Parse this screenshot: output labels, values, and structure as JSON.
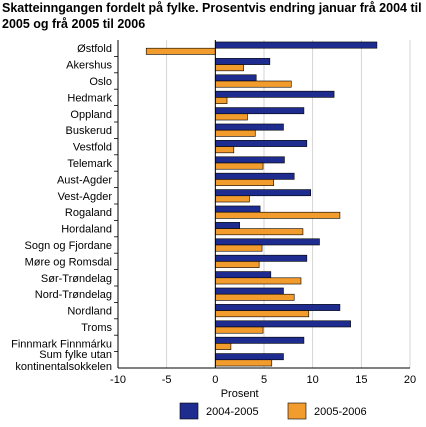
{
  "chart_data": {
    "type": "bar",
    "orientation": "horizontal",
    "title": "Skatteinngangen fordelt på fylke. Prosentvis endring januar frå 2004 til 2005 og frå 2005 til 2006",
    "xlabel": "Prosent",
    "xlim": [
      -10,
      20
    ],
    "xticks": [
      -10,
      -5,
      0,
      5,
      10,
      15,
      20
    ],
    "grid": "vertical",
    "legend_position": "bottom",
    "categories": [
      [
        "Østfold"
      ],
      [
        "Akershus"
      ],
      [
        "Oslo"
      ],
      [
        "Hedmark"
      ],
      [
        "Oppland"
      ],
      [
        "Buskerud"
      ],
      [
        "Vestfold"
      ],
      [
        "Telemark"
      ],
      [
        "Aust-Agder"
      ],
      [
        "Vest-Agder"
      ],
      [
        "Rogaland"
      ],
      [
        "Hordaland"
      ],
      [
        "Sogn og Fjordane"
      ],
      [
        "Møre og Romsdal"
      ],
      [
        "Sør-Trøndelag"
      ],
      [
        "Nord-Trøndelag"
      ],
      [
        "Nordland"
      ],
      [
        "Troms"
      ],
      [
        "Finnmark Finnmárku"
      ],
      [
        "Sum fylke utan",
        "kontinentalsokkelen"
      ]
    ],
    "series": [
      {
        "name": "2004-2005",
        "color": "#1f2c8f",
        "values": [
          16.6,
          5.6,
          4.2,
          12.2,
          9.1,
          7.0,
          9.4,
          7.1,
          8.1,
          9.8,
          4.6,
          2.5,
          10.7,
          9.4,
          5.7,
          7.0,
          12.8,
          13.9,
          9.1,
          7.0
        ]
      },
      {
        "name": "2005-2006",
        "color": "#f39c2e",
        "values": [
          -7.1,
          2.9,
          7.8,
          1.2,
          3.3,
          4.1,
          1.9,
          4.9,
          6.0,
          3.5,
          12.8,
          9.0,
          4.8,
          4.5,
          8.8,
          8.1,
          9.6,
          4.9,
          1.6,
          5.8
        ]
      }
    ]
  }
}
